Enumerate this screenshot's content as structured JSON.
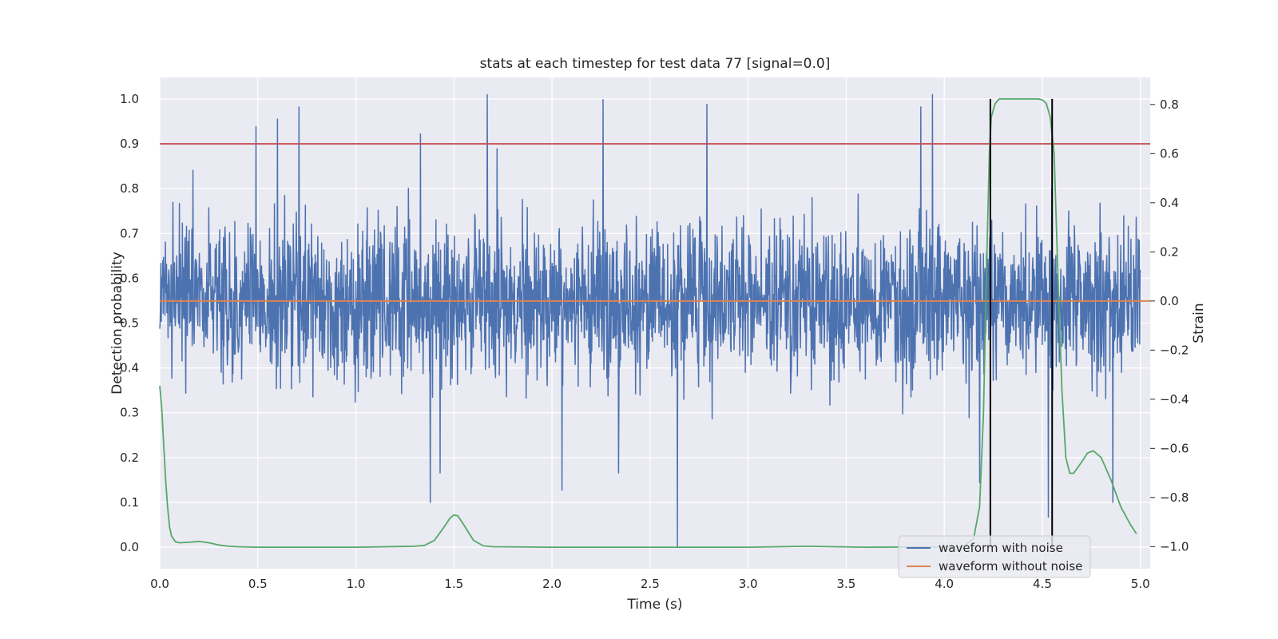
{
  "chart_data": {
    "type": "line",
    "title": "stats at each timestep for test data 77 [signal=0.0]",
    "xlabel": "Time (s)",
    "ylabel_left": "Detection probability",
    "ylabel_right": "Strain",
    "xlim": [
      0.0,
      5.05
    ],
    "ylim_left": [
      -0.048,
      1.048
    ],
    "ylim_right": [
      -1.09,
      0.91
    ],
    "x_ticks": [
      "0.0",
      "0.5",
      "1.0",
      "1.5",
      "2.0",
      "2.5",
      "3.0",
      "3.5",
      "4.0",
      "4.5",
      "5.0"
    ],
    "y_left_ticks": [
      "0.0",
      "0.1",
      "0.2",
      "0.3",
      "0.4",
      "0.5",
      "0.6",
      "0.7",
      "0.8",
      "0.9",
      "1.0"
    ],
    "y_right_ticks": [
      "−1.0",
      "−0.8",
      "−0.6",
      "−0.4",
      "−0.2",
      "0.0",
      "0.2",
      "0.4",
      "0.6",
      "0.8"
    ],
    "grid": true,
    "legend_position": "lower right",
    "threshold": 0.9,
    "detection_markers": [
      4.235,
      4.55
    ],
    "series": [
      {
        "name": "waveform with noise",
        "axis": "right",
        "color": "#4c72b0",
        "noise_baseline": 0.0,
        "noise_amplitude": 0.22,
        "duration": 5.0,
        "peak_samples": [
          {
            "x": 0.49,
            "y": 0.71
          },
          {
            "x": 0.6,
            "y": 0.74
          },
          {
            "x": 0.71,
            "y": 0.79
          },
          {
            "x": 1.33,
            "y": 0.68
          },
          {
            "x": 1.67,
            "y": 0.84
          },
          {
            "x": 1.72,
            "y": 0.62
          },
          {
            "x": 2.26,
            "y": 0.82
          },
          {
            "x": 2.79,
            "y": 0.8
          },
          {
            "x": 3.88,
            "y": 0.79
          },
          {
            "x": 3.94,
            "y": 0.84
          },
          {
            "x": 1.38,
            "y": -0.82
          },
          {
            "x": 1.43,
            "y": -0.7
          },
          {
            "x": 2.05,
            "y": -0.77
          },
          {
            "x": 2.34,
            "y": -0.7
          },
          {
            "x": 2.64,
            "y": -1.0
          },
          {
            "x": 4.53,
            "y": -0.88
          },
          {
            "x": 4.86,
            "y": -0.82
          },
          {
            "x": 4.18,
            "y": -0.74
          }
        ]
      },
      {
        "name": "waveform without noise",
        "axis": "right",
        "color": "#dd8452",
        "values_constant": 0.0
      },
      {
        "name": "",
        "axis": "left",
        "color": "#55a868",
        "x": [
          0.0,
          0.01,
          0.02,
          0.03,
          0.04,
          0.05,
          0.06,
          0.08,
          0.1,
          0.15,
          0.2,
          0.25,
          0.3,
          0.35,
          0.4,
          0.5,
          1.0,
          1.3,
          1.35,
          1.4,
          1.45,
          1.48,
          1.5,
          1.52,
          1.55,
          1.6,
          1.65,
          1.7,
          2.0,
          3.0,
          3.3,
          3.6,
          4.1,
          4.15,
          4.18,
          4.2,
          4.21,
          4.22,
          4.23,
          4.24,
          4.26,
          4.28,
          4.3,
          4.4,
          4.45,
          4.48,
          4.5,
          4.52,
          4.54,
          4.56,
          4.58,
          4.6,
          4.62,
          4.64,
          4.66,
          4.7,
          4.73,
          4.76,
          4.8,
          4.85,
          4.9,
          4.95,
          4.98
        ],
        "y": [
          0.36,
          0.31,
          0.23,
          0.15,
          0.09,
          0.045,
          0.025,
          0.012,
          0.01,
          0.011,
          0.013,
          0.01,
          0.005,
          0.002,
          0.001,
          0.0,
          0.0,
          0.002,
          0.004,
          0.015,
          0.045,
          0.065,
          0.072,
          0.07,
          0.05,
          0.015,
          0.003,
          0.001,
          0.0,
          0.0,
          0.002,
          0.0,
          0.001,
          0.02,
          0.09,
          0.3,
          0.5,
          0.7,
          0.88,
          0.96,
          0.99,
          1.0,
          1.0,
          1.0,
          1.0,
          1.0,
          0.998,
          0.99,
          0.96,
          0.88,
          0.6,
          0.35,
          0.2,
          0.165,
          0.165,
          0.19,
          0.21,
          0.215,
          0.2,
          0.15,
          0.09,
          0.05,
          0.03
        ]
      }
    ]
  }
}
